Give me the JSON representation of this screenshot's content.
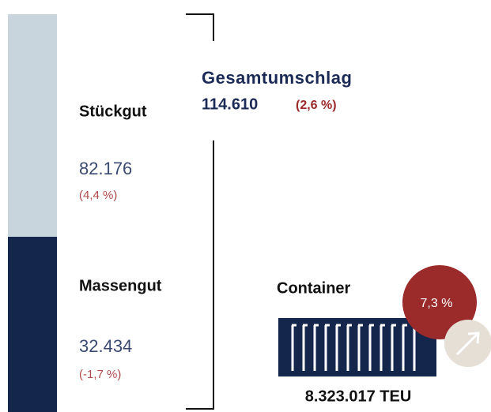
{
  "total": {
    "title": "Gesamtumschlag",
    "value": "114.610",
    "change": "(2,6 %)"
  },
  "segments": [
    {
      "label": "Stückgut",
      "value": "82.176",
      "change": "(4,4 %)"
    },
    {
      "label": "Massengut",
      "value": "32.434",
      "change": "(-1,7 %)"
    }
  ],
  "container": {
    "label": "Container",
    "change": "7,3 %",
    "value": "8.323.017 TEU"
  }
}
